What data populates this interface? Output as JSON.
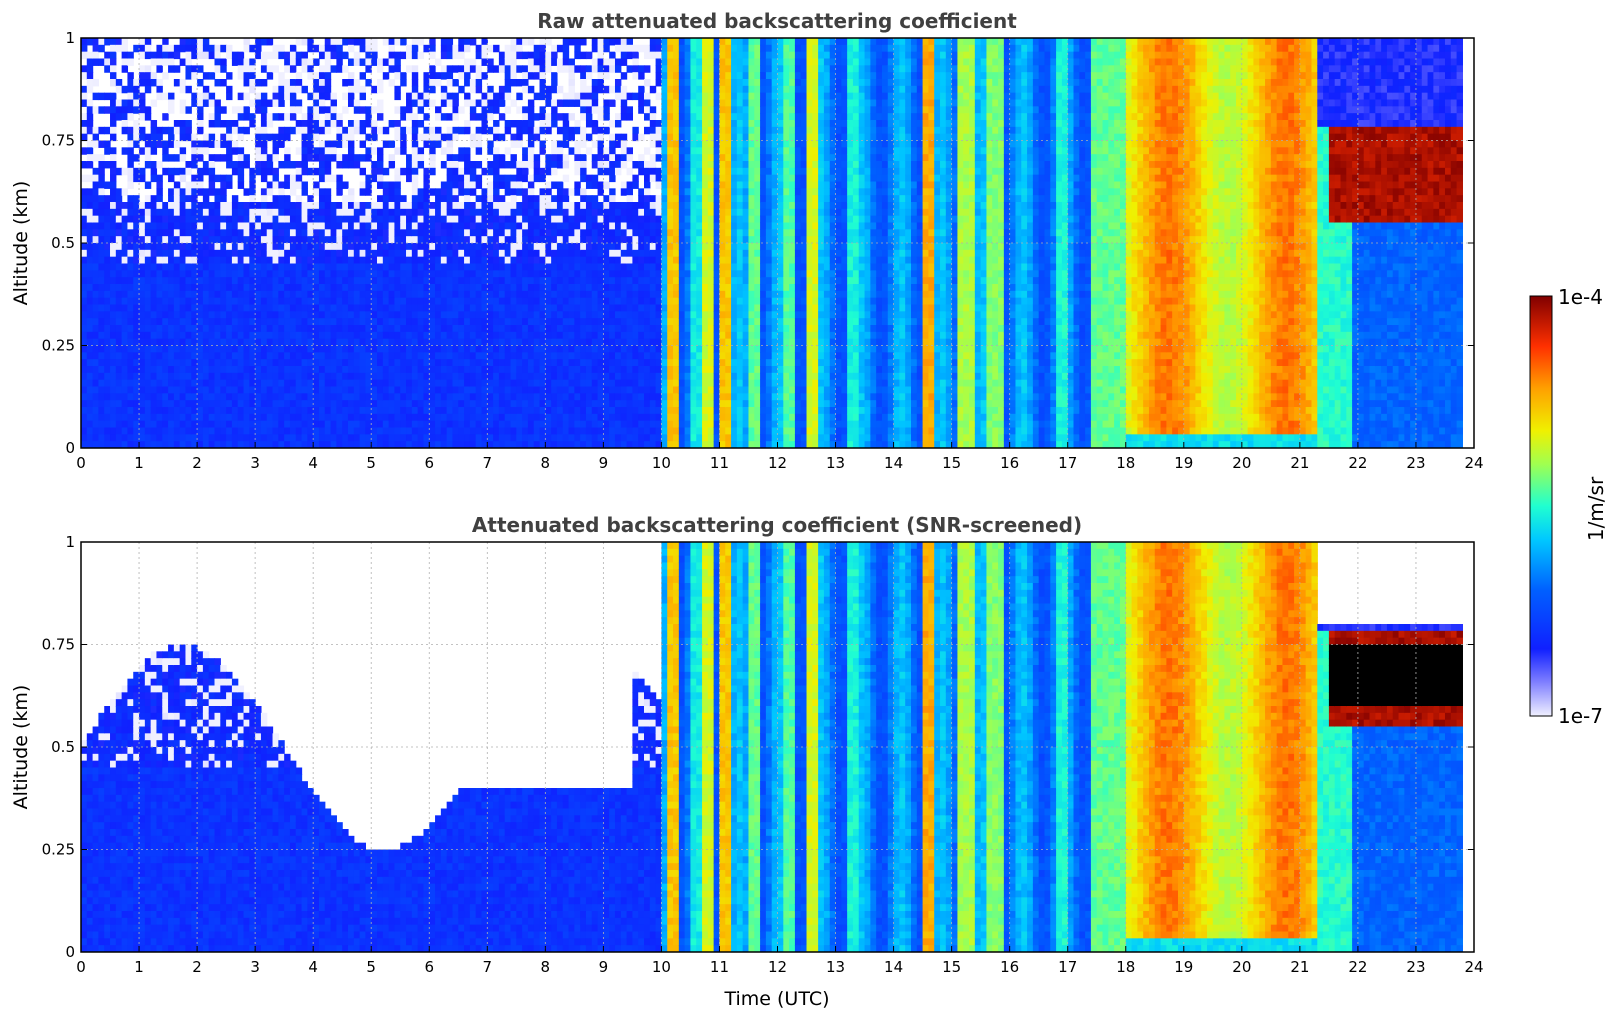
{
  "chart_data": [
    {
      "type": "heatmap",
      "title": "Raw attenuated backscattering coefficient",
      "xlabel": "",
      "ylabel": "Altitude (km)",
      "xlim": [
        0,
        24
      ],
      "ylim": [
        0,
        1
      ],
      "xticks": [
        "0",
        "1",
        "2",
        "3",
        "4",
        "5",
        "6",
        "7",
        "8",
        "9",
        "10",
        "11",
        "12",
        "13",
        "14",
        "15",
        "16",
        "17",
        "18",
        "19",
        "20",
        "21",
        "22",
        "23",
        "24"
      ],
      "yticks": [
        "0",
        "0.25",
        "0.5",
        "0.75",
        "1"
      ],
      "grid": true,
      "screened": false
    },
    {
      "type": "heatmap",
      "title": "Attenuated backscattering coefficient (SNR-screened)",
      "xlabel": "Time (UTC)",
      "ylabel": "Altitude (km)",
      "xlim": [
        0,
        24
      ],
      "ylim": [
        0,
        1
      ],
      "xticks": [
        "0",
        "1",
        "2",
        "3",
        "4",
        "5",
        "6",
        "7",
        "8",
        "9",
        "10",
        "11",
        "12",
        "13",
        "14",
        "15",
        "16",
        "17",
        "18",
        "19",
        "20",
        "21",
        "22",
        "23",
        "24"
      ],
      "yticks": [
        "0",
        "0.25",
        "0.5",
        "0.75",
        "1"
      ],
      "grid": true,
      "screened": true
    }
  ],
  "colorbar": {
    "label": "1/m/sr",
    "max_label": "1e-4",
    "min_label": "1e-7",
    "scale": "log",
    "colormap": "jet"
  }
}
